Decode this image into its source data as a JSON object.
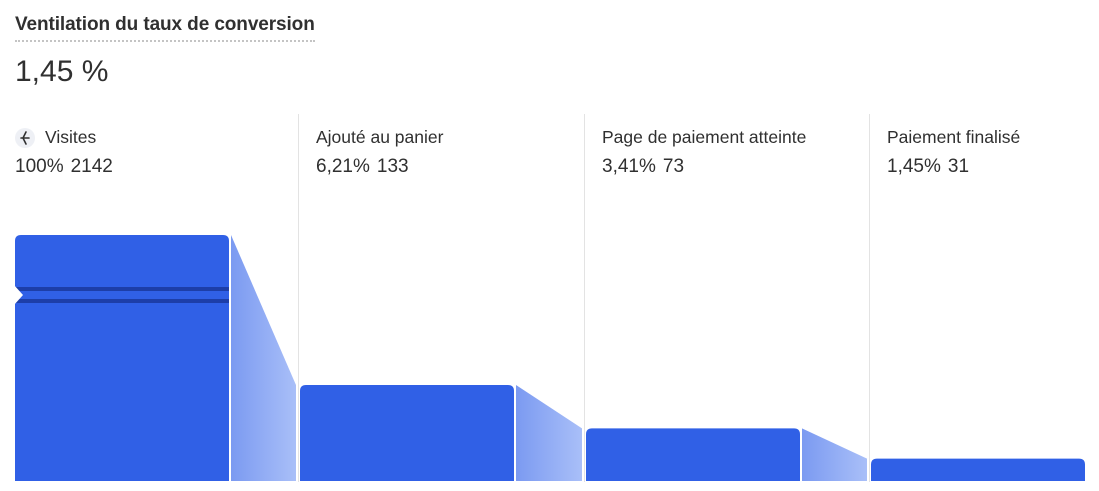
{
  "header": {
    "title": "Ventilation du taux de conversion",
    "rate": "1,45 %"
  },
  "stages": [
    {
      "label": "Visites",
      "percent": "100%",
      "count": "2142",
      "icon": "lightning-bolt-icon"
    },
    {
      "label": "Ajouté au panier",
      "percent": "6,21%",
      "count": "133"
    },
    {
      "label": "Page de paiement atteinte",
      "percent": "3,41%",
      "count": "73"
    },
    {
      "label": "Paiement finalisé",
      "percent": "1,45%",
      "count": "31"
    }
  ],
  "chart_data": {
    "type": "bar",
    "categories": [
      "Visites",
      "Ajouté au panier",
      "Page de paiement atteinte",
      "Paiement finalisé"
    ],
    "values": [
      2142,
      133,
      73,
      31
    ],
    "percentages": [
      100,
      6.21,
      3.41,
      1.45
    ],
    "axis_break": true,
    "colors": {
      "bar": "#3060e6",
      "flow_light": "#a9bff8",
      "flow_dark": "#7b9af1",
      "break_line": "#1d3ea8"
    }
  }
}
